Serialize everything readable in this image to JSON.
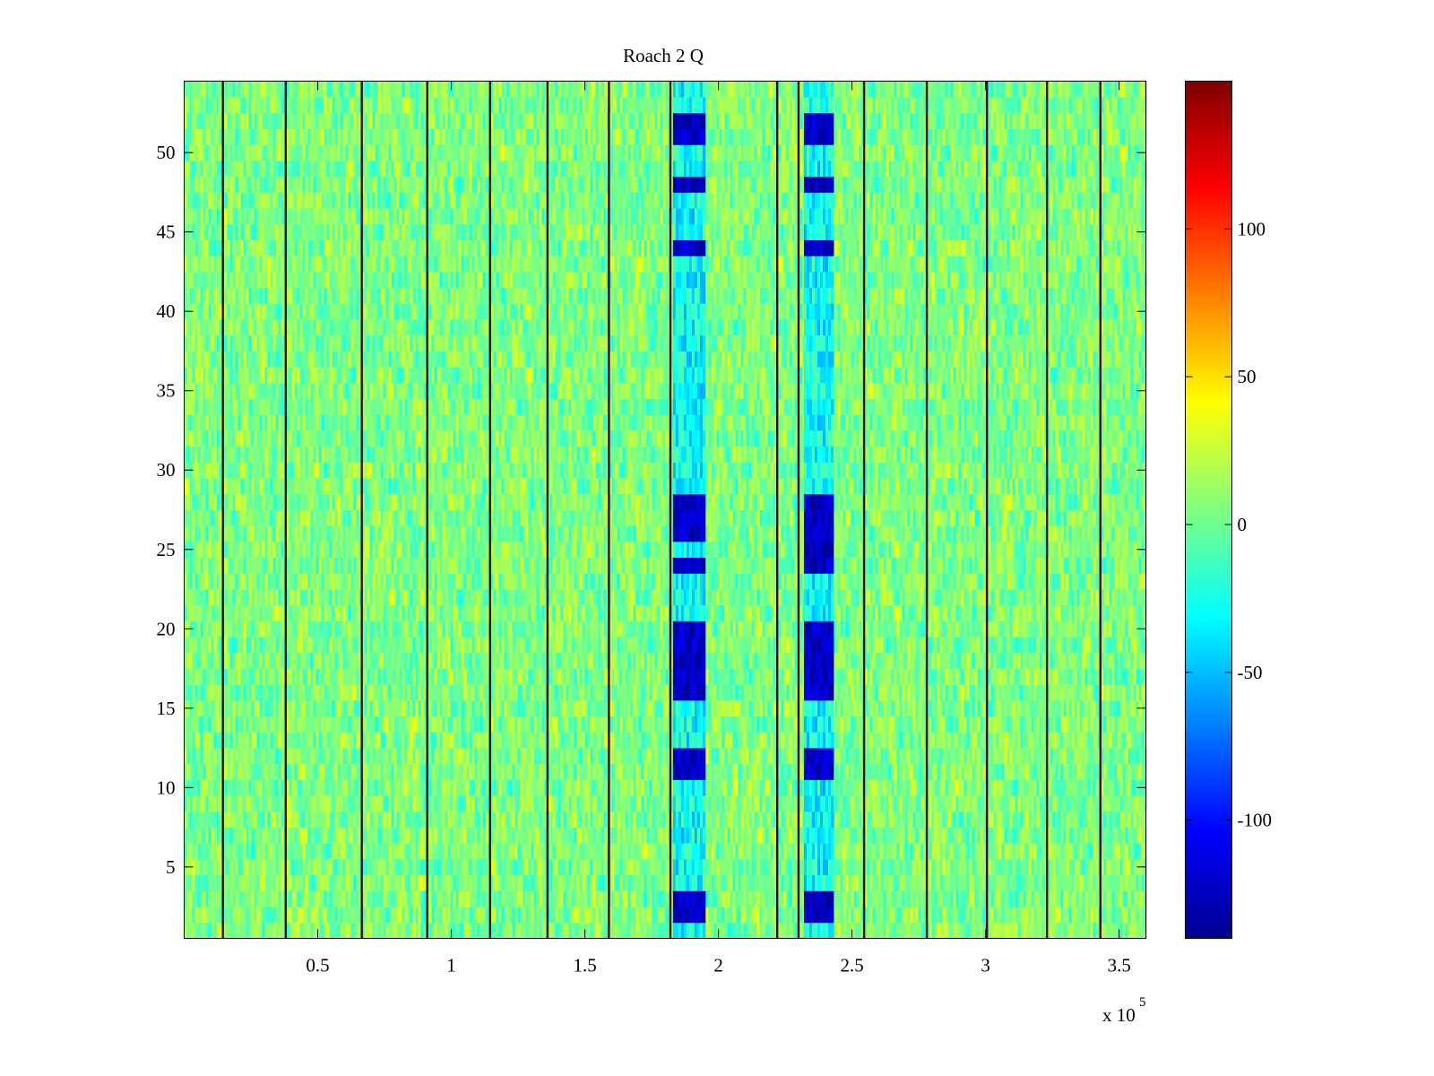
{
  "chart_data": {
    "type": "heatmap",
    "title": "Roach 2 Q",
    "xlabel": "",
    "ylabel": "",
    "x_range": [
      0,
      360000
    ],
    "y_range": [
      0.5,
      54.5
    ],
    "rows": 54,
    "x_ticks": [
      50000,
      100000,
      150000,
      200000,
      250000,
      300000,
      350000
    ],
    "x_tick_labels": [
      "0.5",
      "1",
      "1.5",
      "2",
      "2.5",
      "3",
      "3.5"
    ],
    "x_exponent_base": "x 10",
    "x_exponent_power": "5",
    "y_ticks": [
      5,
      10,
      15,
      20,
      25,
      30,
      35,
      40,
      45,
      50
    ],
    "y_tick_labels": [
      "5",
      "10",
      "15",
      "20",
      "25",
      "30",
      "35",
      "40",
      "45",
      "50"
    ],
    "colormap": "jet",
    "color_range": [
      -140,
      150
    ],
    "colorbar_ticks": [
      100,
      50,
      0,
      -50,
      -100
    ],
    "colorbar_tick_labels": [
      "100",
      "50",
      "0",
      "-50",
      "-100"
    ],
    "background_value_range": [
      -30,
      40
    ],
    "dark_vertical_lines_x": [
      14500,
      38000,
      66500,
      91000,
      114500,
      136000,
      159000,
      182000,
      222000,
      230000,
      254500,
      278000,
      300500,
      323000,
      343000
    ],
    "strong_negative_bands": [
      {
        "x_range": [
          183000,
          195000
        ],
        "rows_strong": [
          2,
          3,
          11,
          12,
          16,
          17,
          18,
          19,
          20,
          24,
          26,
          27,
          28,
          44,
          48,
          51,
          52
        ],
        "value": -120
      },
      {
        "x_range": [
          232000,
          243000
        ],
        "rows_strong": [
          2,
          3,
          11,
          12,
          16,
          17,
          18,
          19,
          20,
          24,
          25,
          26,
          27,
          28,
          44,
          48,
          51,
          52
        ],
        "value": -120
      }
    ],
    "grid": false,
    "legend": "colorbar-right"
  }
}
